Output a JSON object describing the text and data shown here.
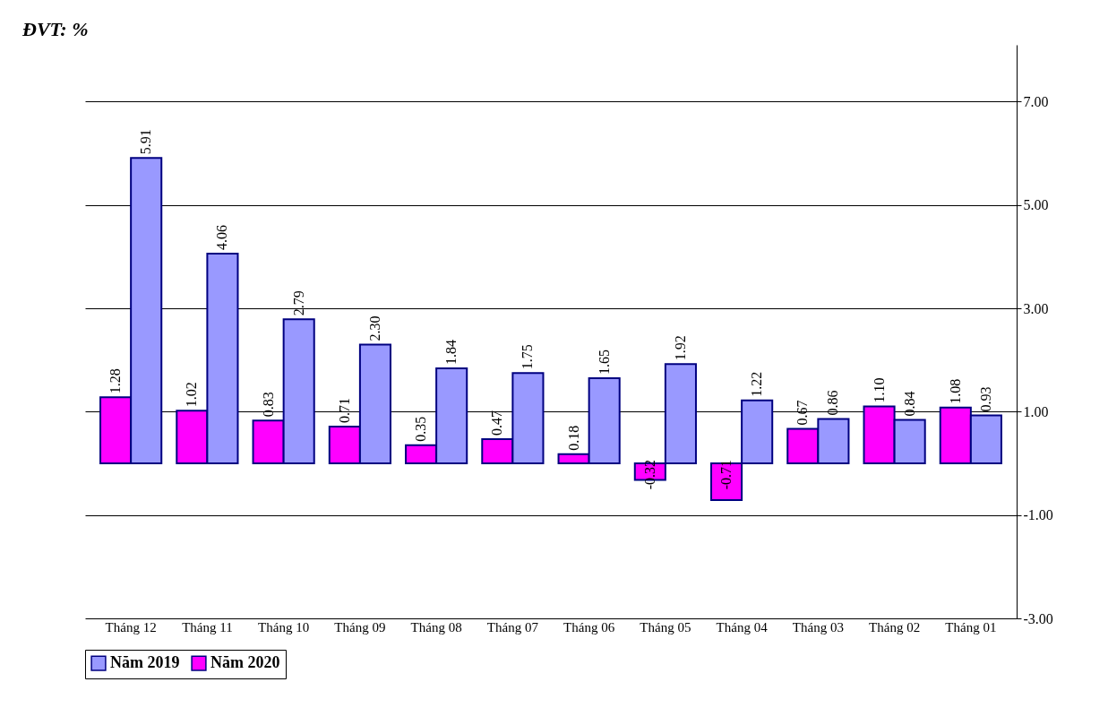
{
  "chart_data": {
    "type": "bar",
    "title": "ĐVT: %",
    "categories": [
      "Tháng 12",
      "Tháng 11",
      "Tháng 10",
      "Tháng 09",
      "Tháng 08",
      "Tháng 07",
      "Tháng 06",
      "Tháng 05",
      "Tháng 04",
      "Tháng 03",
      "Tháng 02",
      "Tháng 01"
    ],
    "series": [
      {
        "name": "Năm 2020",
        "color": "#ff00ff",
        "values": [
          1.28,
          1.02,
          0.83,
          0.71,
          0.35,
          0.47,
          0.18,
          -0.32,
          -0.71,
          0.67,
          1.1,
          1.08
        ],
        "value_labels": [
          "1.28",
          "1.02",
          "0.83",
          "0.71",
          "0.35",
          "0.47",
          "0.18",
          "-0.32",
          "-0.71",
          "0.67",
          "1.10",
          "1.08"
        ]
      },
      {
        "name": "Năm 2019",
        "color": "#9999ff",
        "values": [
          5.91,
          4.06,
          2.79,
          2.3,
          1.84,
          1.75,
          1.65,
          1.92,
          1.22,
          0.86,
          0.84,
          0.93
        ],
        "value_labels": [
          "5.91",
          "4.06",
          "2.79",
          "2.30",
          "1.84",
          "1.75",
          "1.65",
          "1.92",
          "1.22",
          "0.86",
          "0.84",
          "0.93"
        ]
      }
    ],
    "ylim": [
      -3,
      8.1
    ],
    "yticks": [
      {
        "value": -3,
        "label": "-3.00"
      },
      {
        "value": -1,
        "label": "-1.00"
      },
      {
        "value": 1,
        "label": "1.00"
      },
      {
        "value": 3,
        "label": "3.00"
      },
      {
        "value": 5,
        "label": "5.00"
      },
      {
        "value": 7,
        "label": "7.00"
      }
    ],
    "grid": "y",
    "legend": "bottom"
  }
}
